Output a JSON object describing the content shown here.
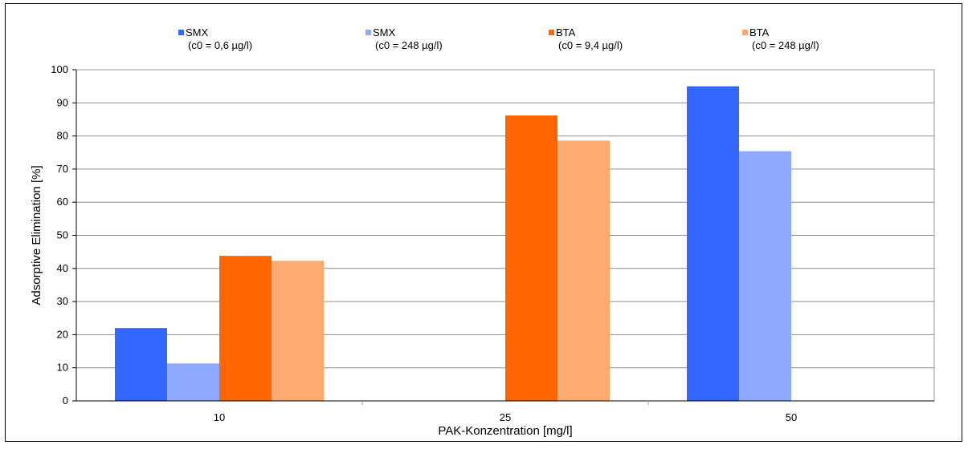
{
  "chart_data": {
    "type": "bar",
    "categories": [
      "10",
      "25",
      "50"
    ],
    "series": [
      {
        "name": "SMX",
        "note": "(c0 = 0,6 µg/l)",
        "color": "#3366ff",
        "values": [
          22,
          0,
          95
        ]
      },
      {
        "name": "SMX",
        "note": "(c0 = 248 µg/l)",
        "color": "#8ca8ff",
        "values": [
          11.3,
          0,
          75.4
        ]
      },
      {
        "name": "BTA",
        "note": "(c0 = 9,4 µg/l)",
        "color": "#ff6600",
        "values": [
          43.8,
          86.2,
          0
        ]
      },
      {
        "name": "BTA",
        "note": "(c0 = 248 µg/l)",
        "color": "#ffaa70",
        "values": [
          42.3,
          78.6,
          0
        ]
      }
    ],
    "xlabel": "PAK-Konzentration [mg/l]",
    "ylabel": "Adsorptive Elimination [%]",
    "ylim": [
      0,
      100
    ],
    "yticks": [
      "0",
      "10",
      "20",
      "30",
      "40",
      "50",
      "60",
      "70",
      "80",
      "90",
      "100"
    ],
    "grid": true,
    "legend_position": "top"
  }
}
